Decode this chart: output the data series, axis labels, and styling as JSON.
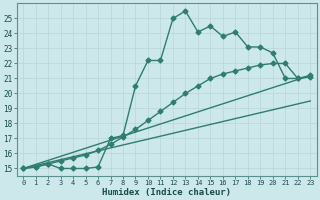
{
  "xlabel": "Humidex (Indice chaleur)",
  "bg_color": "#cce8ea",
  "line_color": "#2e7d6e",
  "grid_color": "#b8d4d6",
  "xlim": [
    -0.5,
    23.5
  ],
  "ylim": [
    14.5,
    26.0
  ],
  "xticks": [
    0,
    1,
    2,
    3,
    4,
    5,
    6,
    7,
    8,
    9,
    10,
    11,
    12,
    13,
    14,
    15,
    16,
    17,
    18,
    19,
    20,
    21,
    22,
    23
  ],
  "yticks": [
    15,
    16,
    17,
    18,
    19,
    20,
    21,
    22,
    23,
    24,
    25
  ],
  "line1_x": [
    0,
    1,
    2,
    3,
    4,
    5,
    6,
    7,
    8,
    9,
    10,
    11,
    12,
    13,
    14,
    15,
    16,
    17,
    18,
    19,
    20,
    21,
    22,
    23
  ],
  "line1_y": [
    15.0,
    15.1,
    15.3,
    15.0,
    15.0,
    15.0,
    15.1,
    17.0,
    17.2,
    20.5,
    22.2,
    22.2,
    25.0,
    25.5,
    24.1,
    24.5,
    23.8,
    24.1,
    23.1,
    23.1,
    22.7,
    21.0,
    21.0,
    21.2
  ],
  "line2_x": [
    0,
    1,
    2,
    3,
    4,
    5,
    6,
    7,
    8,
    9,
    10,
    11,
    12,
    13,
    14,
    15,
    16,
    17,
    18,
    19,
    20,
    21,
    22,
    23
  ],
  "line2_y": [
    15.0,
    15.1,
    15.3,
    15.5,
    15.7,
    15.9,
    16.2,
    16.6,
    17.1,
    17.6,
    18.2,
    18.8,
    19.4,
    20.0,
    20.5,
    21.0,
    21.3,
    21.5,
    21.7,
    21.9,
    22.0,
    22.0,
    21.0,
    21.1
  ],
  "line3_x": [
    0,
    23
  ],
  "line3_y": [
    15.0,
    21.2
  ],
  "line4_x": [
    0,
    23
  ],
  "line4_y": [
    15.0,
    19.5
  ],
  "marker": "D",
  "markersize": 2.5,
  "linewidth": 1.0
}
